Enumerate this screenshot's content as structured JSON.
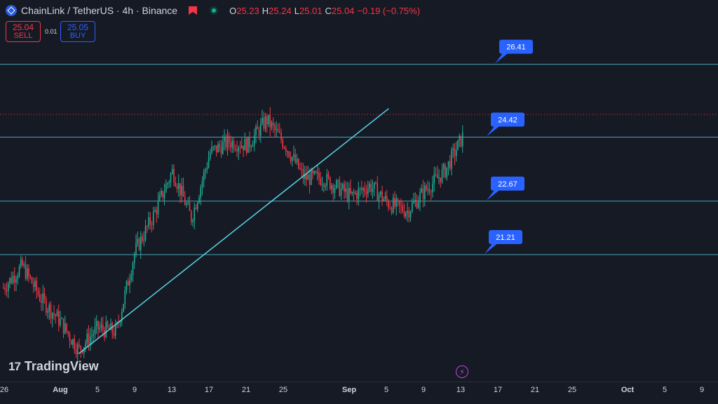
{
  "header": {
    "title": "ChainLink / TetherUS · 4h · Binance",
    "ohlc": [
      {
        "k": "O",
        "v": "25.23"
      },
      {
        "k": "H",
        "v": "25.24"
      },
      {
        "k": "L",
        "v": "25.01"
      },
      {
        "k": "C",
        "v": "25.04"
      },
      {
        "k": "",
        "v": "−0.19 (−0.75%)"
      }
    ]
  },
  "trade": {
    "sell_price": "25.04",
    "sell_label": "SELL",
    "spread": "0.01",
    "buy_price": "25.05",
    "buy_label": "BUY"
  },
  "branding": {
    "logo_text": "TradingView"
  },
  "colors": {
    "background": "#161a25",
    "up": "#22ab94",
    "down": "#f23645",
    "line": "#56d6e6",
    "label": "#2962ff"
  },
  "chart_data": {
    "type": "candlestick",
    "ylim": [
      18.2,
      27.4
    ],
    "x_ticks": [
      "26",
      "Aug",
      "5",
      "9",
      "13",
      "17",
      "21",
      "25",
      "Sep",
      "5",
      "9",
      "13",
      "17",
      "21",
      "25",
      "Oct",
      "5",
      "9"
    ],
    "horizontal_levels": [
      26.41,
      24.42,
      22.67,
      21.21
    ],
    "level_labels": [
      "26.41",
      "24.42",
      "22.67",
      "21.21"
    ],
    "current_price_line": 25.04,
    "trend_line": {
      "from": [
        "Aug 3",
        18.5
      ],
      "to": [
        "Sep 5",
        25.2
      ]
    },
    "price_path": [
      [
        "Jul 26",
        20.3
      ],
      [
        "Jul 28",
        20.9
      ],
      [
        "Jul 30",
        20.0
      ],
      [
        "Aug 1",
        19.4
      ],
      [
        "Aug 3",
        18.6
      ],
      [
        "Aug 5",
        19.2
      ],
      [
        "Aug 7",
        19.1
      ],
      [
        "Aug 9",
        21.3
      ],
      [
        "Aug 11",
        22.3
      ],
      [
        "Aug 13",
        23.5
      ],
      [
        "Aug 15",
        22.2
      ],
      [
        "Aug 17",
        24.0
      ],
      [
        "Aug 19",
        24.3
      ],
      [
        "Aug 21",
        24.2
      ],
      [
        "Aug 23",
        24.9
      ],
      [
        "Aug 25",
        24.2
      ],
      [
        "Aug 27",
        23.3
      ],
      [
        "Aug 29",
        23.3
      ],
      [
        "Sep 1",
        22.8
      ],
      [
        "Sep 3",
        23.1
      ],
      [
        "Sep 5",
        22.6
      ],
      [
        "Sep 7",
        22.4
      ],
      [
        "Sep 9",
        23.0
      ],
      [
        "Sep 11",
        23.5
      ],
      [
        "Sep 13",
        24.5
      ]
    ]
  }
}
